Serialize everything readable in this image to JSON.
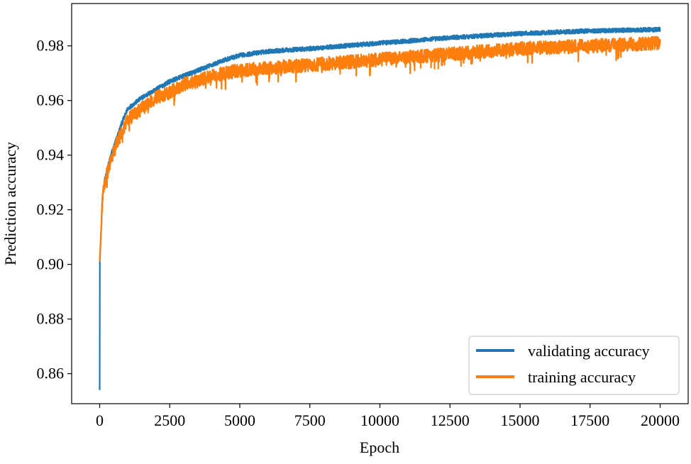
{
  "chart_data": {
    "type": "line",
    "title": "",
    "xlabel": "Epoch",
    "ylabel": "Prediction accuracy",
    "xlim": [
      -1000,
      21000
    ],
    "ylim": [
      0.849,
      0.9955
    ],
    "xticks": [
      0,
      2500,
      5000,
      7500,
      10000,
      12500,
      15000,
      17500,
      20000
    ],
    "xtick_labels": [
      "0",
      "2500",
      "5000",
      "7500",
      "10000",
      "12500",
      "15000",
      "17500",
      "20000"
    ],
    "yticks": [
      0.86,
      0.88,
      0.9,
      0.92,
      0.94,
      0.96,
      0.98
    ],
    "ytick_labels": [
      "0.86",
      "0.88",
      "0.90",
      "0.92",
      "0.94",
      "0.96",
      "0.98"
    ],
    "grid": false,
    "legend_position": "lower-right",
    "series": [
      {
        "name": "validating accuracy",
        "color": "#1f77b4",
        "noise": 0.0008,
        "x": [
          0,
          1,
          50,
          100,
          200,
          400,
          600,
          800,
          1000,
          1500,
          2000,
          2500,
          3000,
          3500,
          4000,
          4500,
          5000,
          6000,
          7500,
          10000,
          12500,
          15000,
          17500,
          20000
        ],
        "y": [
          0.854,
          0.9,
          0.912,
          0.925,
          0.932,
          0.94,
          0.946,
          0.952,
          0.957,
          0.961,
          0.964,
          0.967,
          0.969,
          0.971,
          0.973,
          0.975,
          0.9765,
          0.978,
          0.979,
          0.981,
          0.983,
          0.9845,
          0.9855,
          0.986
        ]
      },
      {
        "name": "training accuracy",
        "color": "#ff7f0e",
        "noise": 0.0025,
        "x": [
          0,
          50,
          100,
          200,
          400,
          600,
          800,
          1000,
          1500,
          2000,
          2500,
          3000,
          3500,
          4000,
          5000,
          6000,
          7500,
          10000,
          12500,
          15000,
          17500,
          20000
        ],
        "y": [
          0.901,
          0.912,
          0.924,
          0.931,
          0.938,
          0.944,
          0.949,
          0.953,
          0.957,
          0.961,
          0.963,
          0.966,
          0.967,
          0.969,
          0.971,
          0.972,
          0.973,
          0.975,
          0.977,
          0.979,
          0.98,
          0.981
        ]
      }
    ]
  }
}
